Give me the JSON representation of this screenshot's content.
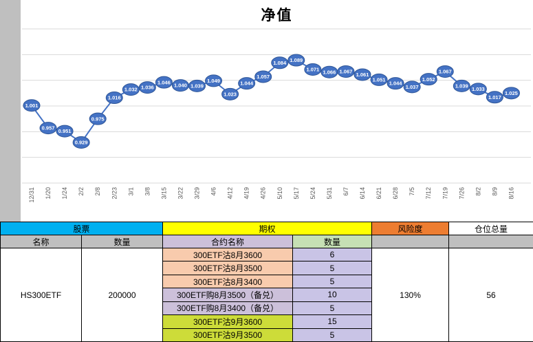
{
  "chart_data": {
    "type": "line",
    "title": "净值",
    "x": [
      "12/31",
      "1/20",
      "1/24",
      "2/2",
      "2/8",
      "2/23",
      "3/1",
      "3/8",
      "3/15",
      "3/22",
      "3/29",
      "4/6",
      "4/12",
      "4/19",
      "4/26",
      "5/10",
      "5/17",
      "5/24",
      "5/31",
      "6/7",
      "6/14",
      "6/21",
      "6/28",
      "7/5",
      "7/12",
      "7/19",
      "7/26",
      "8/2",
      "8/9",
      "8/16"
    ],
    "values": [
      1.001,
      0.957,
      0.951,
      0.929,
      0.975,
      1.016,
      1.032,
      1.036,
      1.046,
      1.04,
      1.039,
      1.049,
      1.023,
      1.044,
      1.057,
      1.084,
      1.089,
      1.071,
      1.066,
      1.067,
      1.061,
      1.051,
      1.044,
      1.037,
      1.052,
      1.067,
      1.039,
      1.033,
      1.017,
      1.025
    ],
    "ylim": [
      0.85,
      1.15
    ],
    "grid_step": 0.05,
    "grid": "horizontal-only",
    "legend": "none",
    "data_labels": "on-point",
    "series_color": "#4472C4",
    "marker_stroke": "#2E5596",
    "gridline_color": "#D9D9D9",
    "point_label_color": "#FFFFFF",
    "axis_label_color": "#595959"
  },
  "table": {
    "group_headers": {
      "stock": "股票",
      "option": "期权",
      "risk": "风险度",
      "total": "仓位总量"
    },
    "column_headers": {
      "stock_name": "名称",
      "stock_qty": "数量",
      "contract_name": "合约名称",
      "contract_qty": "数量"
    },
    "stock": {
      "name": "HS300ETF",
      "quantity": "200000"
    },
    "options": [
      {
        "name": "300ETF沽8月3600",
        "qty": "6"
      },
      {
        "name": "300ETF沽8月3500",
        "qty": "5"
      },
      {
        "name": "300ETF沽8月3400",
        "qty": "5"
      },
      {
        "name": "300ETF购8月3500（备兑）",
        "qty": "10"
      },
      {
        "name": "300ETF购8月3400（备兑）",
        "qty": "5"
      },
      {
        "name": "300ETF沽9月3600",
        "qty": "15"
      },
      {
        "name": "300ETF沽9月3500",
        "qty": "5"
      }
    ],
    "risk_value": "130%",
    "total_value": "56"
  },
  "colors": {
    "stock_header_cyan": "#00B0F0",
    "option_header_yellow": "#FFFF00",
    "risk_header_orange": "#ED7D31",
    "subheader_gray": "#BFBFBF",
    "contract_header_lavender": "#CCC0DA",
    "qty_header_green": "#C6E0B4",
    "aug_put_peach": "#F8CBAD",
    "covered_call_lavender": "#CCC0DA",
    "sep_put_chartreuse": "#CDDC39",
    "qty_cell_lavender": "#C9C4E6",
    "sheet_gutter_gray": "#BFBFBF",
    "line_blue": "#4472C4"
  }
}
